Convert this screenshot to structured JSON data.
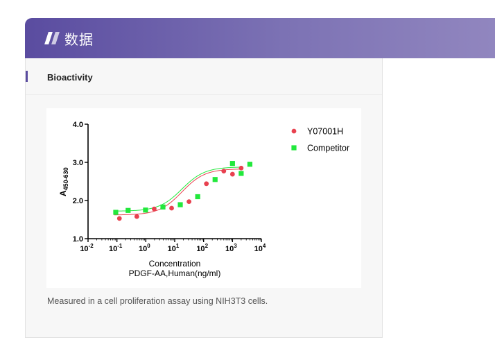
{
  "header": {
    "title": "数据",
    "icon": "double-slash-icon"
  },
  "section": {
    "title": "Bioactivity"
  },
  "caption": "Measured in a cell proliferation assay using NIH3T3 cells.",
  "colors": {
    "header_start": "#5a4ca0",
    "header_end": "#9186bf",
    "series1": "#e8414f",
    "series2": "#22e83c"
  },
  "chart_data": {
    "type": "scatter",
    "xscale": "log",
    "xlim": [
      0.01,
      10000
    ],
    "ylim": [
      1.0,
      4.0
    ],
    "xticks": [
      {
        "value": 0.01,
        "base": "10",
        "exp": "-2"
      },
      {
        "value": 0.1,
        "base": "10",
        "exp": "-1"
      },
      {
        "value": 1,
        "base": "10",
        "exp": "0"
      },
      {
        "value": 10,
        "base": "10",
        "exp": "1"
      },
      {
        "value": 100,
        "base": "10",
        "exp": "2"
      },
      {
        "value": 1000,
        "base": "10",
        "exp": "3"
      },
      {
        "value": 10000,
        "base": "10",
        "exp": "4"
      }
    ],
    "yticks": [
      "1.0",
      "2.0",
      "3.0",
      "4.0"
    ],
    "ylabel": {
      "main": "A",
      "sub": "450-630"
    },
    "xlabel_lines": [
      "Concentration",
      "PDGF-AA,Human(ng/ml)"
    ],
    "legend_position": "top-right",
    "series": [
      {
        "name": "Y07001H",
        "marker": "circle",
        "color": "#e8414f",
        "x": [
          0.122,
          0.488,
          1.95,
          7.81,
          31.25,
          125,
          500,
          2000
        ],
        "y": [
          1.53,
          1.58,
          1.78,
          1.8,
          1.97,
          2.44,
          2.77,
          2.85
        ],
        "x_extra": [
          1000
        ],
        "y_extra": [
          2.69
        ]
      },
      {
        "name": "Competitor",
        "marker": "square",
        "color": "#22e83c",
        "x": [
          0.091,
          0.244,
          0.977,
          3.91,
          15.6,
          62.5,
          250,
          1000,
          2000
        ],
        "y": [
          1.69,
          1.74,
          1.75,
          1.83,
          1.89,
          2.1,
          2.55,
          2.97,
          2.71
        ],
        "x_extra": [
          4000
        ],
        "y_extra": [
          2.95
        ]
      }
    ],
    "fits": [
      {
        "series": "Y07001H",
        "bottom": 1.62,
        "top": 2.83,
        "logec50": 1.25,
        "hill": 1.1
      },
      {
        "series": "Competitor",
        "bottom": 1.72,
        "top": 2.88,
        "logec50": 1.25,
        "hill": 1.1
      }
    ]
  }
}
